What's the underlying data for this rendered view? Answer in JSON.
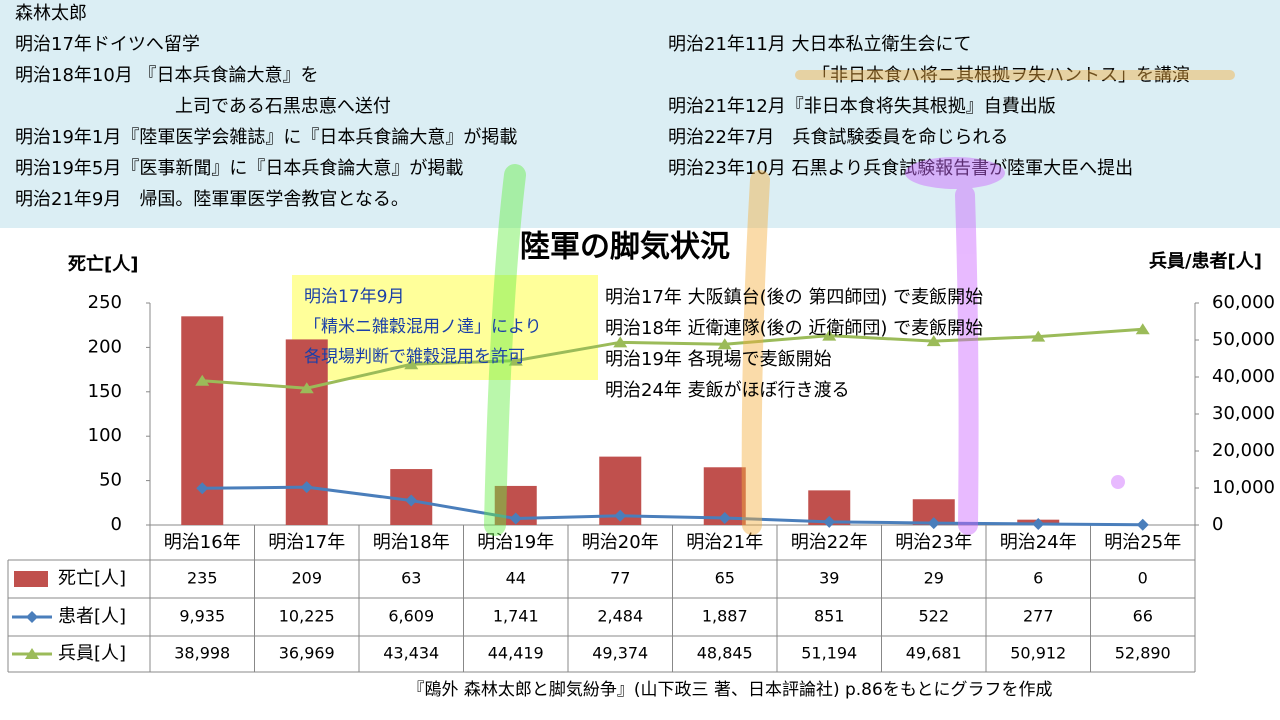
{
  "timeline": {
    "left": [
      {
        "text": "森林太郎"
      },
      {
        "text": "明治17年ドイツへ留学"
      },
      {
        "text": "明治18年10月 『日本兵食論大意』を"
      },
      {
        "text": "上司である石黒忠悳へ送付",
        "indent": true
      },
      {
        "text": "明治19年1月『陸軍医学会雑誌』に『日本兵食論大意』が掲載"
      },
      {
        "text": "明治19年5月『医事新聞』に『日本兵食論大意』が掲載"
      },
      {
        "text": "明治21年9月　帰国。陸軍軍医学舎教官となる。"
      }
    ],
    "right": [
      {
        "text": "明治21年11月 大日本私立衛生会にて"
      },
      {
        "text": "「非日本食ハ将ニ其根拠ヲ失ハントス」を講演",
        "indent": true
      },
      {
        "text": "明治21年12月『非日本食将失其根拠』自費出版"
      },
      {
        "text": "明治22年7月　兵食試験委員を命じられる"
      },
      {
        "text": "明治23年10月 石黒より兵食試験報告書が陸軍大臣へ提出"
      }
    ]
  },
  "chart_data": {
    "type": "combo",
    "title": "陸軍の脚気状況",
    "y_label": "死亡[人]",
    "y2_label": "兵員/患者[人]",
    "categories": [
      "明治16年",
      "明治17年",
      "明治18年",
      "明治19年",
      "明治20年",
      "明治21年",
      "明治22年",
      "明治23年",
      "明治24年",
      "明治25年"
    ],
    "series": [
      {
        "name": "死亡[人]",
        "kind": "bar",
        "color": "#c0504d",
        "values": [
          235,
          209,
          63,
          44,
          77,
          65,
          39,
          29,
          6,
          0
        ]
      },
      {
        "name": "患者[人]",
        "kind": "line",
        "marker": "diamond",
        "axis": "y2",
        "color": "#4a7ebb",
        "values": [
          9935,
          10225,
          6609,
          1741,
          2484,
          1887,
          851,
          522,
          277,
          66
        ],
        "value_labels": [
          "9,935",
          "10,225",
          "6,609",
          "1,741",
          "2,484",
          "1,887",
          "851",
          "522",
          "277",
          "66"
        ]
      },
      {
        "name": "兵員[人]",
        "kind": "line",
        "marker": "triangle",
        "axis": "y2",
        "color": "#9bbb59",
        "values": [
          38998,
          36969,
          43434,
          44419,
          49374,
          48845,
          51194,
          49681,
          50912,
          52890
        ],
        "value_labels": [
          "38,998",
          "36,969",
          "43,434",
          "44,419",
          "49,374",
          "48,845",
          "51,194",
          "49,681",
          "50,912",
          "52,890"
        ]
      }
    ],
    "ylim": [
      0,
      250
    ],
    "yticks": [
      0,
      50,
      100,
      150,
      200,
      250
    ],
    "y2lim": [
      0,
      60000
    ],
    "y2ticks": [
      0,
      {
        "value": 10000,
        "label": "10,000"
      },
      {
        "value": 20000,
        "label": "20,000"
      },
      {
        "value": 30000,
        "label": "30,000"
      },
      {
        "value": 40000,
        "label": "40,000"
      },
      {
        "value": 50000,
        "label": "50,000"
      },
      {
        "value": 60000,
        "label": "60,000"
      }
    ],
    "note_box": [
      "明治17年9月",
      "「精米ニ雑穀混用ノ達」により",
      "各現場判断で雑穀混用を許可"
    ],
    "notes": [
      "明治17年 大阪鎮台(後の 第四師団) で麦飯開始",
      "明治18年 近衛連隊(後の 近衛師団) で麦飯開始",
      "明治19年 各現場で麦飯開始",
      "明治24年 麦飯がほぼ行き渡る"
    ],
    "source": "『鴎外 森林太郎と脚気紛争』(山下政三 著、日本評論社) p.86をもとにグラフを作成"
  }
}
